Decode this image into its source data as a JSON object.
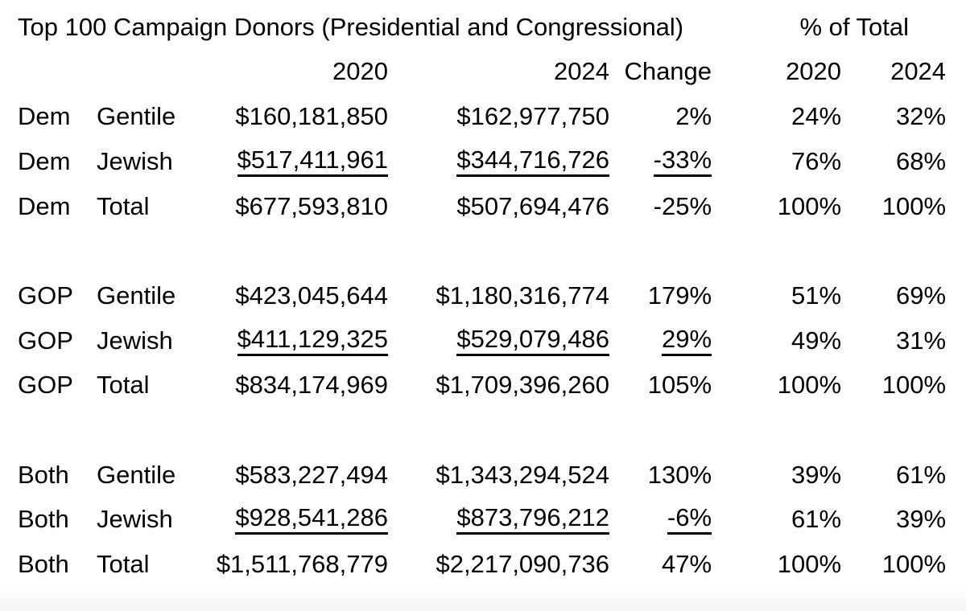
{
  "colors": {
    "text": "#000000",
    "background": "#ffffff",
    "underline": "#000000",
    "footer_strip": "#f4f5f5"
  },
  "chart_data": {
    "type": "table",
    "title": "Top 100 Campaign Donors (Presidential and Congressional)",
    "pct_of_total_header": "% of Total",
    "headers": {
      "y2020": "2020",
      "y2024": "2024",
      "change": "Change",
      "pct2020": "2020",
      "pct2024": "2024"
    },
    "rows": [
      {
        "party": "Dem",
        "group": "Gentile",
        "y2020": "$160,181,850",
        "y2024": "$162,977,750",
        "change": "2%",
        "pct2020": "24%",
        "pct2024": "32%",
        "underline": false
      },
      {
        "party": "Dem",
        "group": "Jewish",
        "y2020": "$517,411,961",
        "y2024": "$344,716,726",
        "change": "-33%",
        "pct2020": "76%",
        "pct2024": "68%",
        "underline": true
      },
      {
        "party": "Dem",
        "group": "Total",
        "y2020": "$677,593,810",
        "y2024": "$507,694,476",
        "change": "-25%",
        "pct2020": "100%",
        "pct2024": "100%",
        "underline": false
      },
      {
        "party": "GOP",
        "group": "Gentile",
        "y2020": "$423,045,644",
        "y2024": "$1,180,316,774",
        "change": "179%",
        "pct2020": "51%",
        "pct2024": "69%",
        "underline": false
      },
      {
        "party": "GOP",
        "group": "Jewish",
        "y2020": "$411,129,325",
        "y2024": "$529,079,486",
        "change": "29%",
        "pct2020": "49%",
        "pct2024": "31%",
        "underline": true
      },
      {
        "party": "GOP",
        "group": "Total",
        "y2020": "$834,174,969",
        "y2024": "$1,709,396,260",
        "change": "105%",
        "pct2020": "100%",
        "pct2024": "100%",
        "underline": false
      },
      {
        "party": "Both",
        "group": "Gentile",
        "y2020": "$583,227,494",
        "y2024": "$1,343,294,524",
        "change": "130%",
        "pct2020": "39%",
        "pct2024": "61%",
        "underline": false
      },
      {
        "party": "Both",
        "group": "Jewish",
        "y2020": "$928,541,286",
        "y2024": "$873,796,212",
        "change": "-6%",
        "pct2020": "61%",
        "pct2024": "39%",
        "underline": true
      },
      {
        "party": "Both",
        "group": "Total",
        "y2020": "$1,511,768,779",
        "y2024": "$2,217,090,736",
        "change": "47%",
        "pct2020": "100%",
        "pct2024": "100%",
        "underline": false
      }
    ]
  }
}
